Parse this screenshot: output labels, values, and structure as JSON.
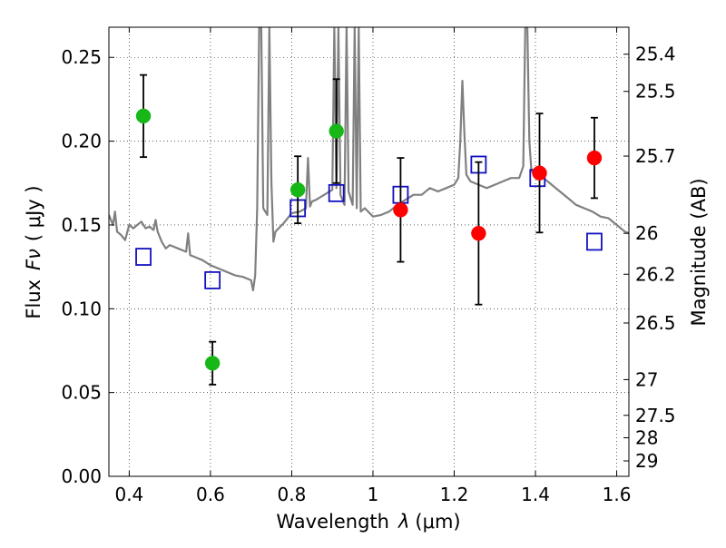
{
  "chart_data": {
    "type": "scatter",
    "xlabel_prefix": "Wavelength",
    "xlabel_symbol": "λ",
    "xlabel_unit": "(μm)",
    "ylabel_prefix": "Flux",
    "ylabel_symbol": "Fν",
    "ylabel_unit": "( μJy )",
    "y2label": "Magnitude (AB)",
    "xlim": [
      0.35,
      1.63
    ],
    "ylim": [
      0.0,
      0.268
    ],
    "x_ticks": [
      0.4,
      0.6,
      0.8,
      1.0,
      1.2,
      1.4,
      1.6
    ],
    "x_tick_labels": [
      "0.4",
      "0.6",
      "0.8",
      "1",
      "1.2",
      "1.4",
      "1.6"
    ],
    "y_ticks": [
      0.0,
      0.05,
      0.1,
      0.15,
      0.2,
      0.25
    ],
    "y_tick_labels": [
      "0.00",
      "0.05",
      "0.10",
      "0.15",
      "0.20",
      "0.25"
    ],
    "y2_ticks": [
      {
        "label": "25.4",
        "flux": 0.2519
      },
      {
        "label": "25.5",
        "flux": 0.2297
      },
      {
        "label": "25.7",
        "flux": 0.1911
      },
      {
        "label": "26",
        "flux": 0.145
      },
      {
        "label": "26.2",
        "flux": 0.1206
      },
      {
        "label": "26.5",
        "flux": 0.0915
      },
      {
        "label": "27",
        "flux": 0.0577
      },
      {
        "label": "27.5",
        "flux": 0.0364
      },
      {
        "label": "28",
        "flux": 0.023
      },
      {
        "label": "29",
        "flux": 0.0092
      }
    ],
    "grid": true,
    "colors": {
      "green": "#16b716",
      "red": "#ff0000",
      "blue": "#1010c0",
      "model": "#808080"
    },
    "series": [
      {
        "name": "observed-green",
        "marker": "filled-circle",
        "points": [
          {
            "x": 0.435,
            "y": 0.215,
            "err": 0.0245
          },
          {
            "x": 0.605,
            "y": 0.0675,
            "err": 0.0128
          },
          {
            "x": 0.815,
            "y": 0.171,
            "err": 0.02
          },
          {
            "x": 0.91,
            "y": 0.206,
            "err": 0.031
          }
        ]
      },
      {
        "name": "observed-red",
        "marker": "filled-circle",
        "points": [
          {
            "x": 1.068,
            "y": 0.159,
            "err": 0.031
          },
          {
            "x": 1.26,
            "y": 0.145,
            "err": 0.0425
          },
          {
            "x": 1.41,
            "y": 0.181,
            "err": 0.0355
          },
          {
            "x": 1.545,
            "y": 0.19,
            "err": 0.024
          }
        ]
      },
      {
        "name": "model-bands",
        "marker": "open-square",
        "points": [
          {
            "x": 0.435,
            "y": 0.131
          },
          {
            "x": 0.605,
            "y": 0.117
          },
          {
            "x": 0.815,
            "y": 0.16
          },
          {
            "x": 0.91,
            "y": 0.169
          },
          {
            "x": 1.068,
            "y": 0.168
          },
          {
            "x": 1.26,
            "y": 0.186
          },
          {
            "x": 1.405,
            "y": 0.178
          },
          {
            "x": 1.545,
            "y": 0.14
          }
        ]
      }
    ],
    "model_spectrum": {
      "name": "template-spectrum",
      "x": [
        0.35,
        0.36,
        0.365,
        0.37,
        0.38,
        0.39,
        0.4,
        0.41,
        0.42,
        0.43,
        0.44,
        0.45,
        0.46,
        0.465,
        0.47,
        0.48,
        0.49,
        0.5,
        0.52,
        0.54,
        0.545,
        0.55,
        0.56,
        0.58,
        0.6,
        0.62,
        0.64,
        0.66,
        0.68,
        0.7,
        0.705,
        0.71,
        0.715,
        0.72,
        0.725,
        0.73,
        0.74,
        0.745,
        0.75,
        0.755,
        0.76,
        0.78,
        0.8,
        0.82,
        0.835,
        0.84,
        0.845,
        0.85,
        0.86,
        0.88,
        0.9,
        0.905,
        0.91,
        0.915,
        0.92,
        0.93,
        0.935,
        0.94,
        0.95,
        0.955,
        0.96,
        0.965,
        0.97,
        0.98,
        1.0,
        1.02,
        1.04,
        1.06,
        1.08,
        1.1,
        1.12,
        1.14,
        1.16,
        1.18,
        1.2,
        1.21,
        1.215,
        1.22,
        1.225,
        1.23,
        1.24,
        1.26,
        1.28,
        1.3,
        1.32,
        1.34,
        1.36,
        1.37,
        1.375,
        1.38,
        1.385,
        1.39,
        1.4,
        1.42,
        1.44,
        1.46,
        1.48,
        1.5,
        1.52,
        1.54,
        1.56,
        1.58,
        1.6,
        1.62,
        1.63
      ],
      "y": [
        0.156,
        0.15,
        0.158,
        0.146,
        0.144,
        0.141,
        0.15,
        0.148,
        0.15,
        0.152,
        0.148,
        0.149,
        0.147,
        0.153,
        0.146,
        0.14,
        0.136,
        0.138,
        0.136,
        0.134,
        0.145,
        0.132,
        0.131,
        0.129,
        0.126,
        0.124,
        0.122,
        0.12,
        0.119,
        0.117,
        0.111,
        0.12,
        0.16,
        0.268,
        0.268,
        0.16,
        0.156,
        0.268,
        0.175,
        0.14,
        0.146,
        0.151,
        0.157,
        0.158,
        0.16,
        0.19,
        0.161,
        0.164,
        0.165,
        0.168,
        0.171,
        0.268,
        0.172,
        0.268,
        0.168,
        0.162,
        0.268,
        0.17,
        0.162,
        0.268,
        0.16,
        0.268,
        0.158,
        0.16,
        0.155,
        0.156,
        0.158,
        0.162,
        0.165,
        0.168,
        0.168,
        0.172,
        0.17,
        0.172,
        0.174,
        0.178,
        0.2,
        0.236,
        0.205,
        0.18,
        0.176,
        0.174,
        0.172,
        0.174,
        0.176,
        0.178,
        0.178,
        0.185,
        0.268,
        0.268,
        0.2,
        0.182,
        0.18,
        0.178,
        0.174,
        0.17,
        0.166,
        0.162,
        0.16,
        0.158,
        0.155,
        0.154,
        0.15,
        0.146,
        0.145
      ]
    }
  }
}
